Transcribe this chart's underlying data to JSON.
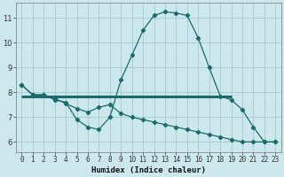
{
  "xlabel": "Humidex (Indice chaleur)",
  "background_color": "#cce8ec",
  "grid_color": "#aacdd4",
  "line_color": "#1a6b6b",
  "x_ticks": [
    0,
    1,
    2,
    3,
    4,
    5,
    6,
    7,
    8,
    9,
    10,
    11,
    12,
    13,
    14,
    15,
    16,
    17,
    18,
    19,
    20,
    21,
    22,
    23
  ],
  "ylim": [
    5.6,
    11.6
  ],
  "xlim": [
    -0.5,
    23.5
  ],
  "yticks": [
    6,
    7,
    8,
    9,
    10,
    11
  ],
  "line1_x": [
    0,
    1,
    2,
    3,
    4,
    5,
    6,
    7,
    8,
    9,
    10,
    11,
    12,
    13,
    14,
    15,
    16,
    17,
    18,
    19,
    20,
    21,
    22,
    23
  ],
  "line1_y": [
    8.3,
    7.9,
    7.9,
    7.7,
    7.6,
    6.9,
    6.6,
    6.5,
    7.0,
    8.5,
    9.5,
    10.5,
    11.1,
    11.25,
    11.2,
    11.1,
    10.2,
    9.0,
    7.85,
    7.7,
    7.3,
    6.6,
    6.0,
    6.0
  ],
  "line2_x": [
    0,
    1,
    2,
    3,
    4,
    5,
    6,
    7,
    8,
    9,
    10,
    11,
    12,
    13,
    14,
    15,
    16,
    17,
    18,
    19,
    20,
    21,
    22,
    23
  ],
  "line2_y": [
    8.3,
    7.9,
    7.9,
    7.75,
    7.55,
    7.35,
    7.2,
    7.4,
    7.5,
    7.15,
    7.0,
    6.9,
    6.8,
    6.7,
    6.6,
    6.5,
    6.4,
    6.3,
    6.2,
    6.1,
    6.0,
    6.0,
    6.0,
    6.0
  ],
  "line3_x": [
    0,
    19
  ],
  "line3_y": [
    7.85,
    7.85
  ],
  "tick_fontsize": 5.5,
  "xlabel_fontsize": 6.5
}
